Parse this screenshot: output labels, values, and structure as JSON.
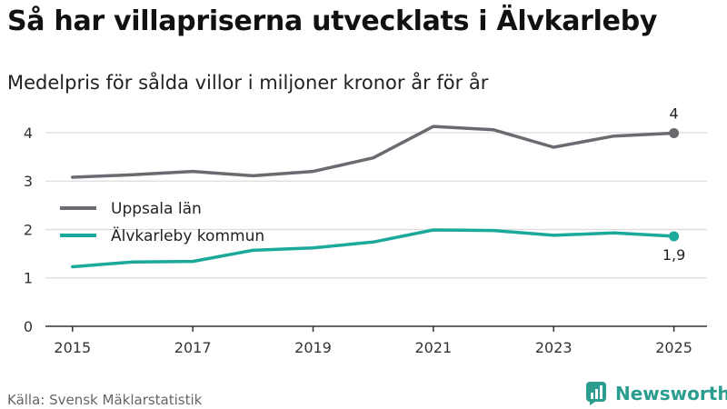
{
  "title": "Så har villapriserna utvecklats i Älvkarleby",
  "subtitle": "Medelpris för sålda villor i miljoner kronor år för år",
  "source": "Källa: Svensk Mäklarstatistik",
  "brand": "Newsworthy",
  "colors": {
    "uppsala": "#6b6a70",
    "alvkarleby": "#1aa99b",
    "grid": "#dcdcdc",
    "axis": "#333333",
    "brand": "#2a9d8f"
  },
  "chart_data": {
    "type": "line",
    "x": [
      2015,
      2016,
      2017,
      2018,
      2019,
      2020,
      2021,
      2022,
      2023,
      2024,
      2025
    ],
    "xticks": [
      "2015",
      "2017",
      "2019",
      "2021",
      "2023",
      "2025"
    ],
    "yticks": [
      "0",
      "1",
      "2",
      "3",
      "4"
    ],
    "ylim": [
      0,
      4.3
    ],
    "grid": true,
    "legend_position": "top-left",
    "series": [
      {
        "name": "Uppsala län",
        "color": "#6b6a70",
        "values": [
          3.08,
          3.13,
          3.2,
          3.11,
          3.2,
          3.48,
          4.13,
          4.06,
          3.7,
          3.93,
          3.99
        ],
        "end_label": "4"
      },
      {
        "name": "Älvkarleby kommun",
        "color": "#1aa99b",
        "values": [
          1.23,
          1.33,
          1.34,
          1.57,
          1.62,
          1.74,
          1.99,
          1.98,
          1.88,
          1.93,
          1.86
        ],
        "end_label": "1,9"
      }
    ]
  }
}
